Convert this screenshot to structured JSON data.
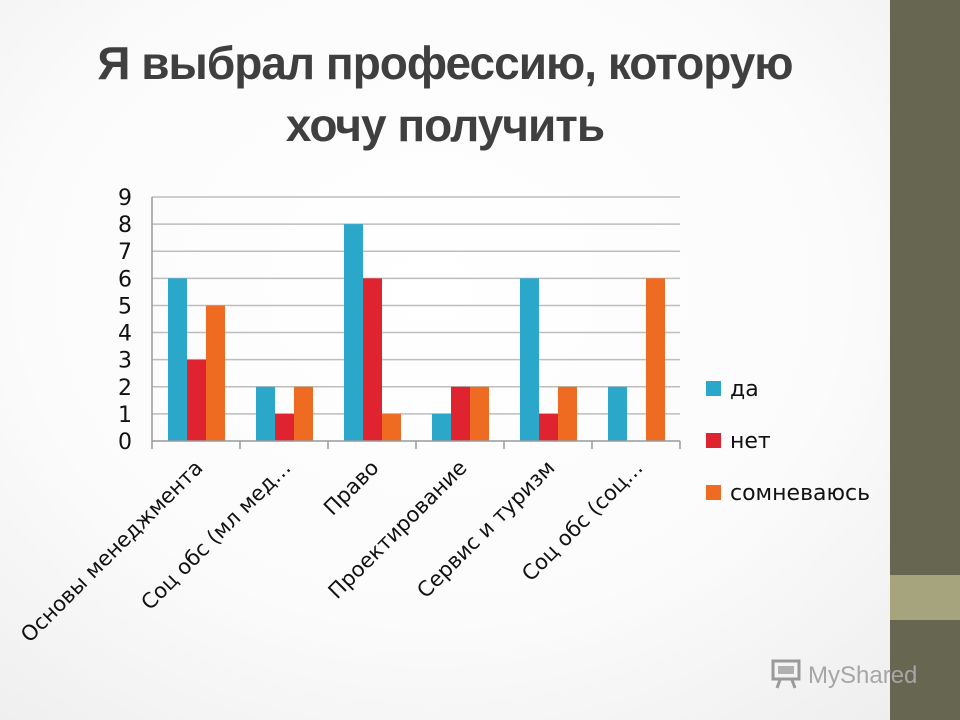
{
  "slide": {
    "title_line1": "Я выбрал профессию, которую",
    "title_line2": "хочу получить",
    "watermark": "MyShared"
  },
  "colors": {
    "sidebar_dark": "#676650",
    "sidebar_light": "#a5a47c"
  },
  "chart_data": {
    "type": "bar",
    "categories": [
      "Основы менеджмента",
      "Соц обс (мл мед…",
      "Право",
      "Проектирование",
      "Сервис и туризм",
      "Соц обс (соц…"
    ],
    "series": [
      {
        "name": "да",
        "color": "#2aa7c9",
        "values": [
          6,
          2,
          8,
          1,
          6,
          2
        ]
      },
      {
        "name": "нет",
        "color": "#e0242f",
        "values": [
          3,
          1,
          6,
          2,
          1,
          0
        ]
      },
      {
        "name": "сомневаюсь",
        "color": "#f06b22",
        "values": [
          5,
          2,
          1,
          2,
          2,
          6
        ]
      }
    ],
    "ylim": [
      0,
      9
    ],
    "yticks": [
      0,
      1,
      2,
      3,
      4,
      5,
      6,
      7,
      8,
      9
    ],
    "grid": true,
    "legend": "right"
  }
}
